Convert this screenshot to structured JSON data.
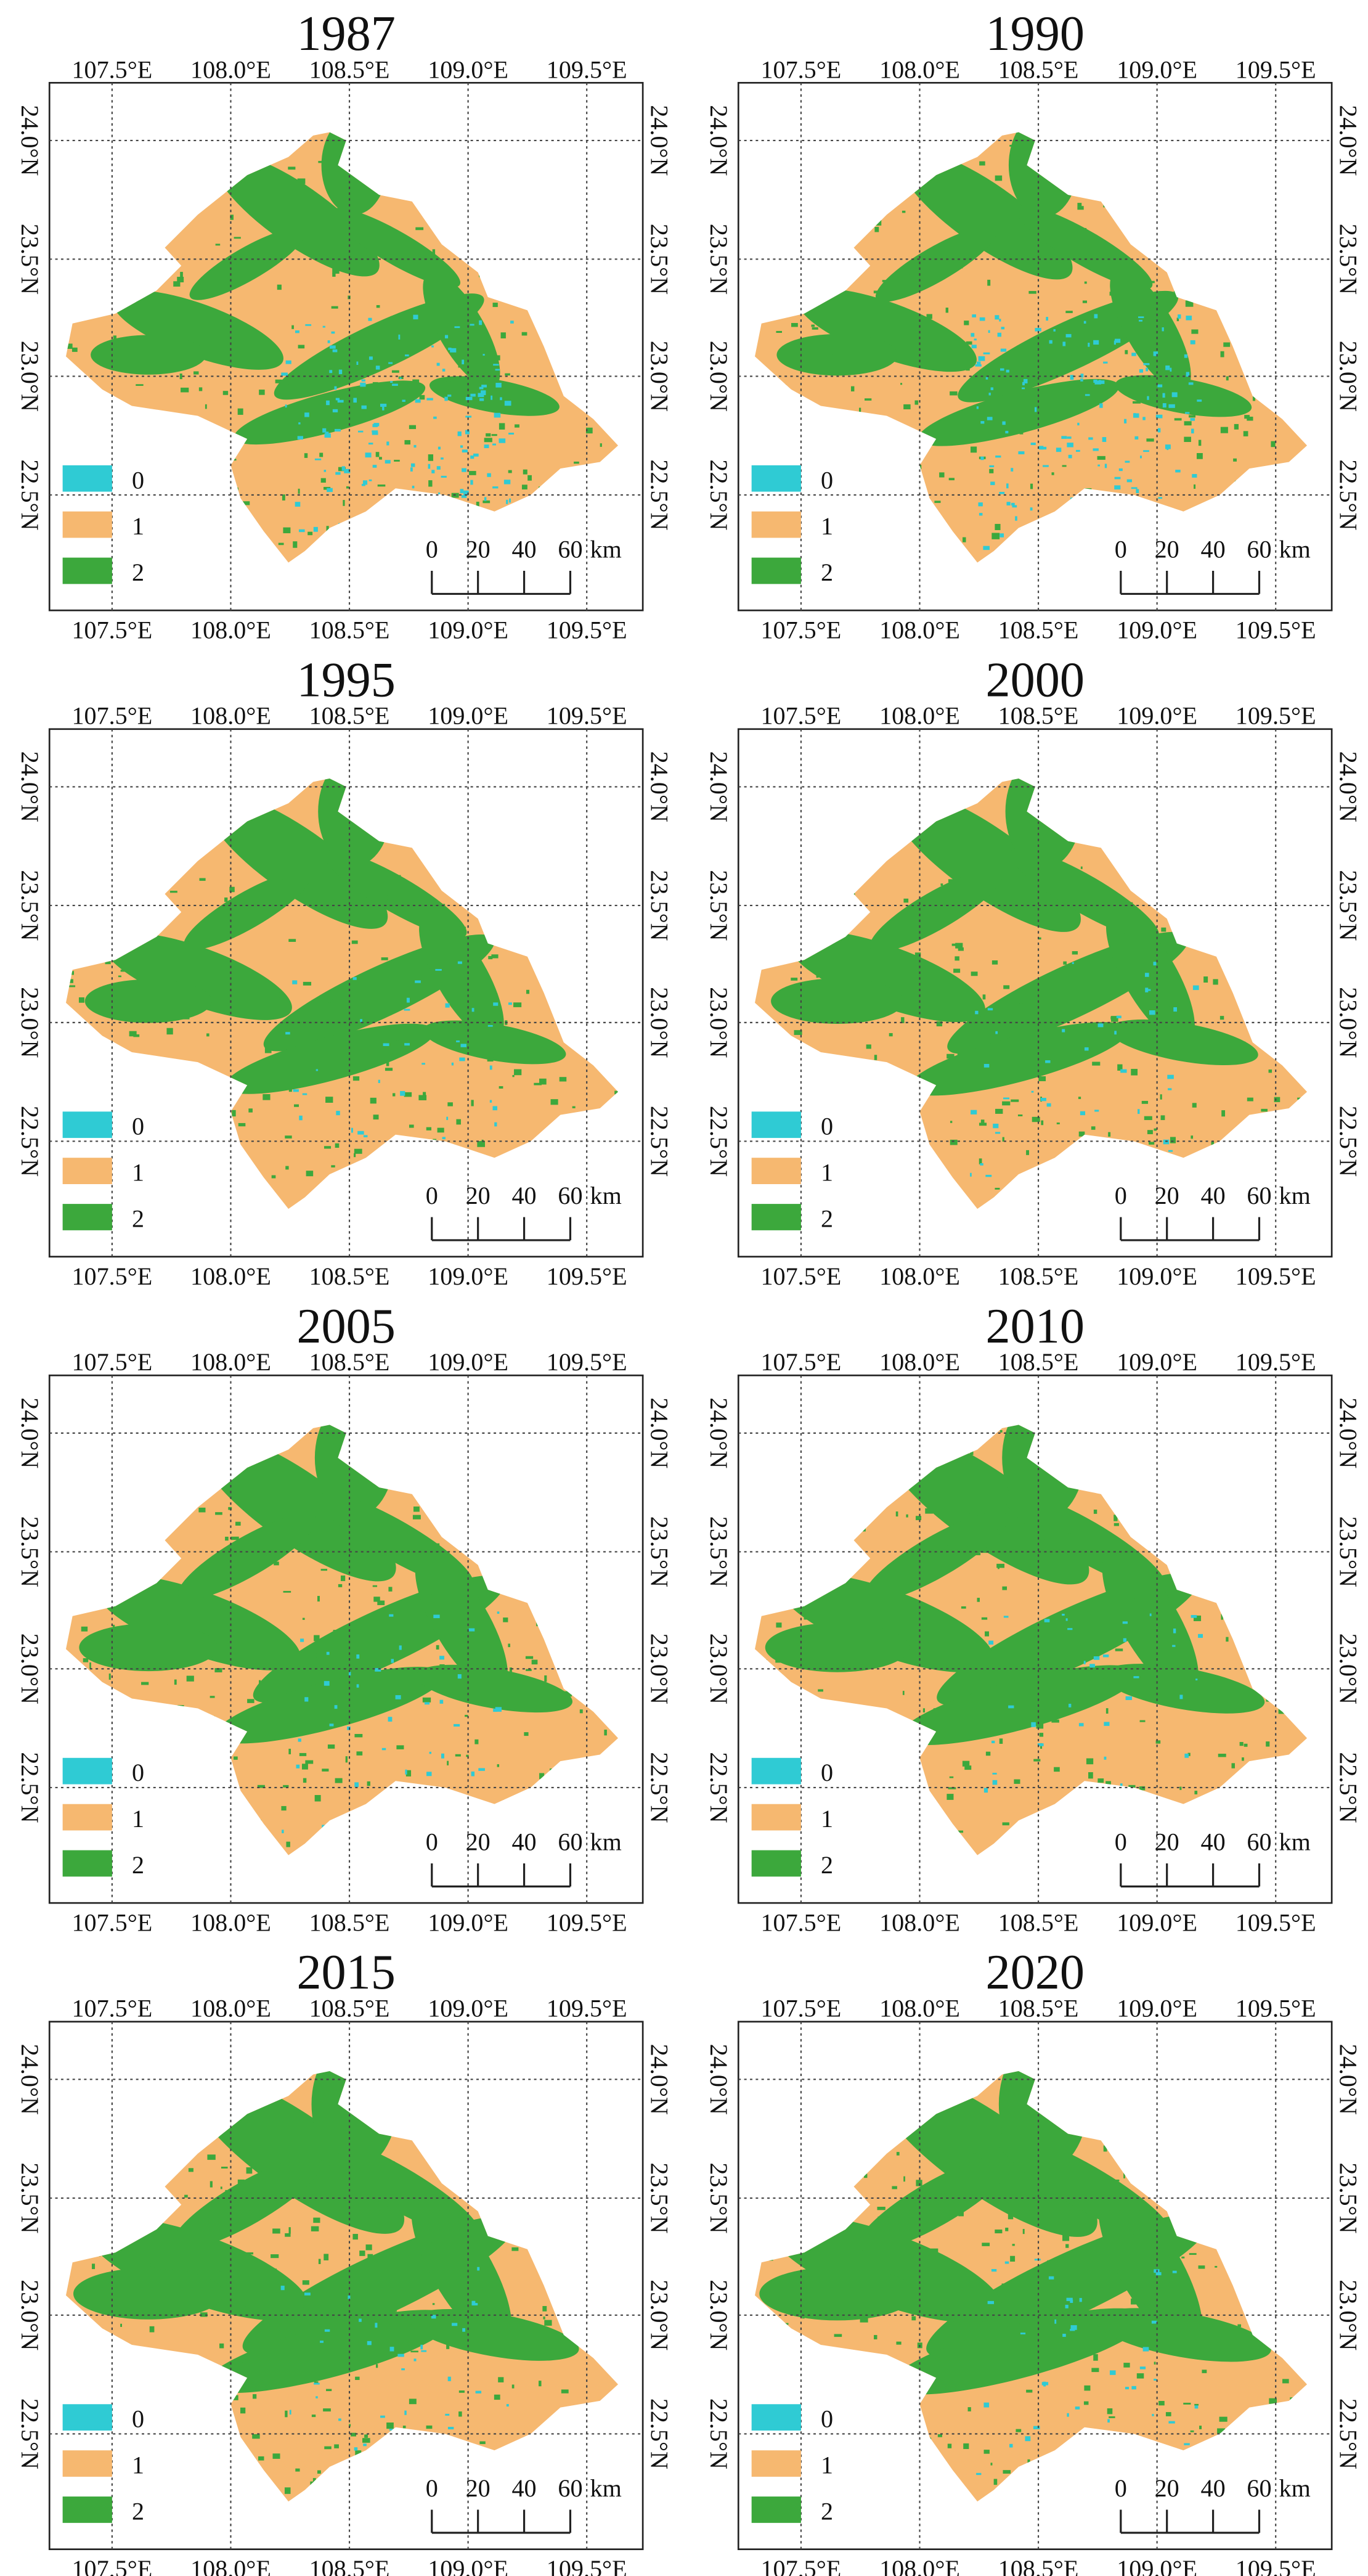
{
  "panels": [
    {
      "title": "1987"
    },
    {
      "title": "1990"
    },
    {
      "title": "1995"
    },
    {
      "title": "2000"
    },
    {
      "title": "2005"
    },
    {
      "title": "2010"
    },
    {
      "title": "2015"
    },
    {
      "title": "2020"
    }
  ],
  "longitude_labels": [
    "107.5°E",
    "108.0°E",
    "108.5°E",
    "109.0°E",
    "109.5°E"
  ],
  "latitude_labels": [
    "24.0°N",
    "23.5°N",
    "23.0°N",
    "22.5°N"
  ],
  "legend": [
    {
      "label": "0",
      "color": "#2fcbd4"
    },
    {
      "label": "1",
      "color": "#f6b870"
    },
    {
      "label": "2",
      "color": "#3ca83c"
    }
  ],
  "scale_bar": {
    "labels": [
      "0",
      "20",
      "40",
      "60"
    ],
    "unit": "km"
  }
}
